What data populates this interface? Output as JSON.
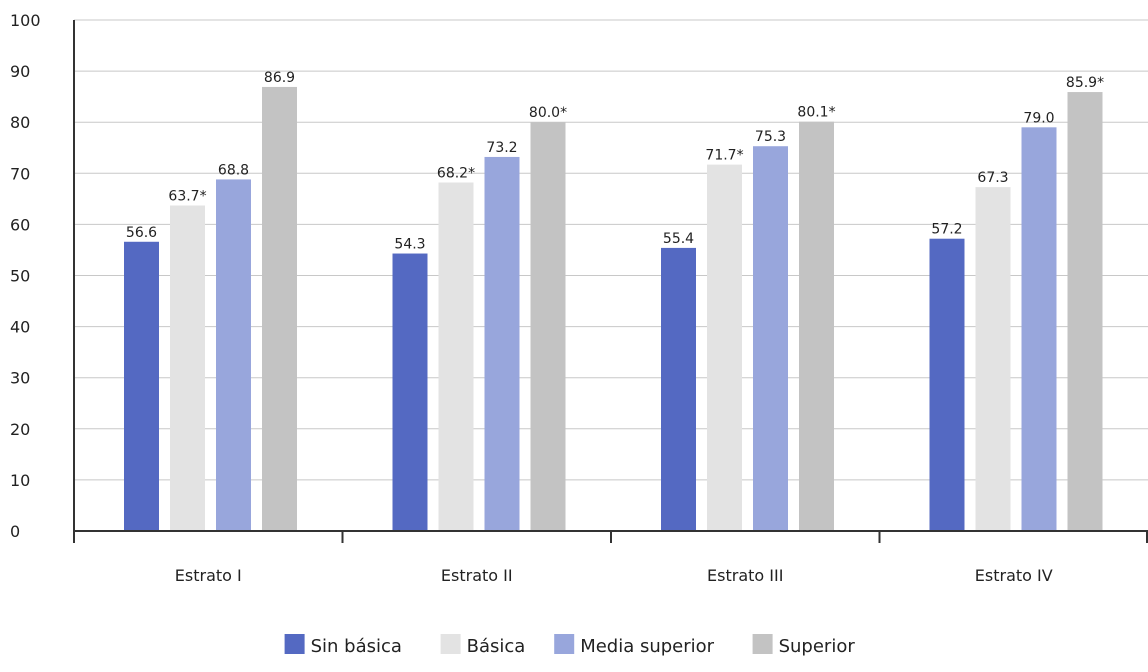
{
  "chart_data": {
    "type": "bar",
    "title": "",
    "xlabel": "",
    "ylabel": "",
    "ylim": [
      0,
      100
    ],
    "yticks": [
      0,
      10,
      20,
      30,
      40,
      50,
      60,
      70,
      80,
      90,
      100
    ],
    "grid": true,
    "legend_position": "bottom",
    "categories": [
      "Estrato I",
      "Estrato II",
      "Estrato III",
      "Estrato IV"
    ],
    "series": [
      {
        "name": "Sin básica",
        "color": "#5469c2",
        "values": [
          56.6,
          54.3,
          55.4,
          57.2
        ],
        "labels": [
          "56.6",
          "54.3",
          "55.4",
          "57.2"
        ]
      },
      {
        "name": "Básica",
        "color": "#e3e3e3",
        "values": [
          63.7,
          68.2,
          71.7,
          67.3
        ],
        "labels": [
          "63.7*",
          "68.2*",
          "71.7*",
          "67.3"
        ]
      },
      {
        "name": "Media superior",
        "color": "#98a6dc",
        "values": [
          68.8,
          73.2,
          75.3,
          79.0
        ],
        "labels": [
          "68.8",
          "73.2",
          "75.3",
          "79.0"
        ]
      },
      {
        "name": "Superior",
        "color": "#c3c3c3",
        "values": [
          86.9,
          80.0,
          80.1,
          85.9
        ],
        "labels": [
          "86.9",
          "80.0*",
          "80.1*",
          "85.9*"
        ]
      }
    ]
  }
}
